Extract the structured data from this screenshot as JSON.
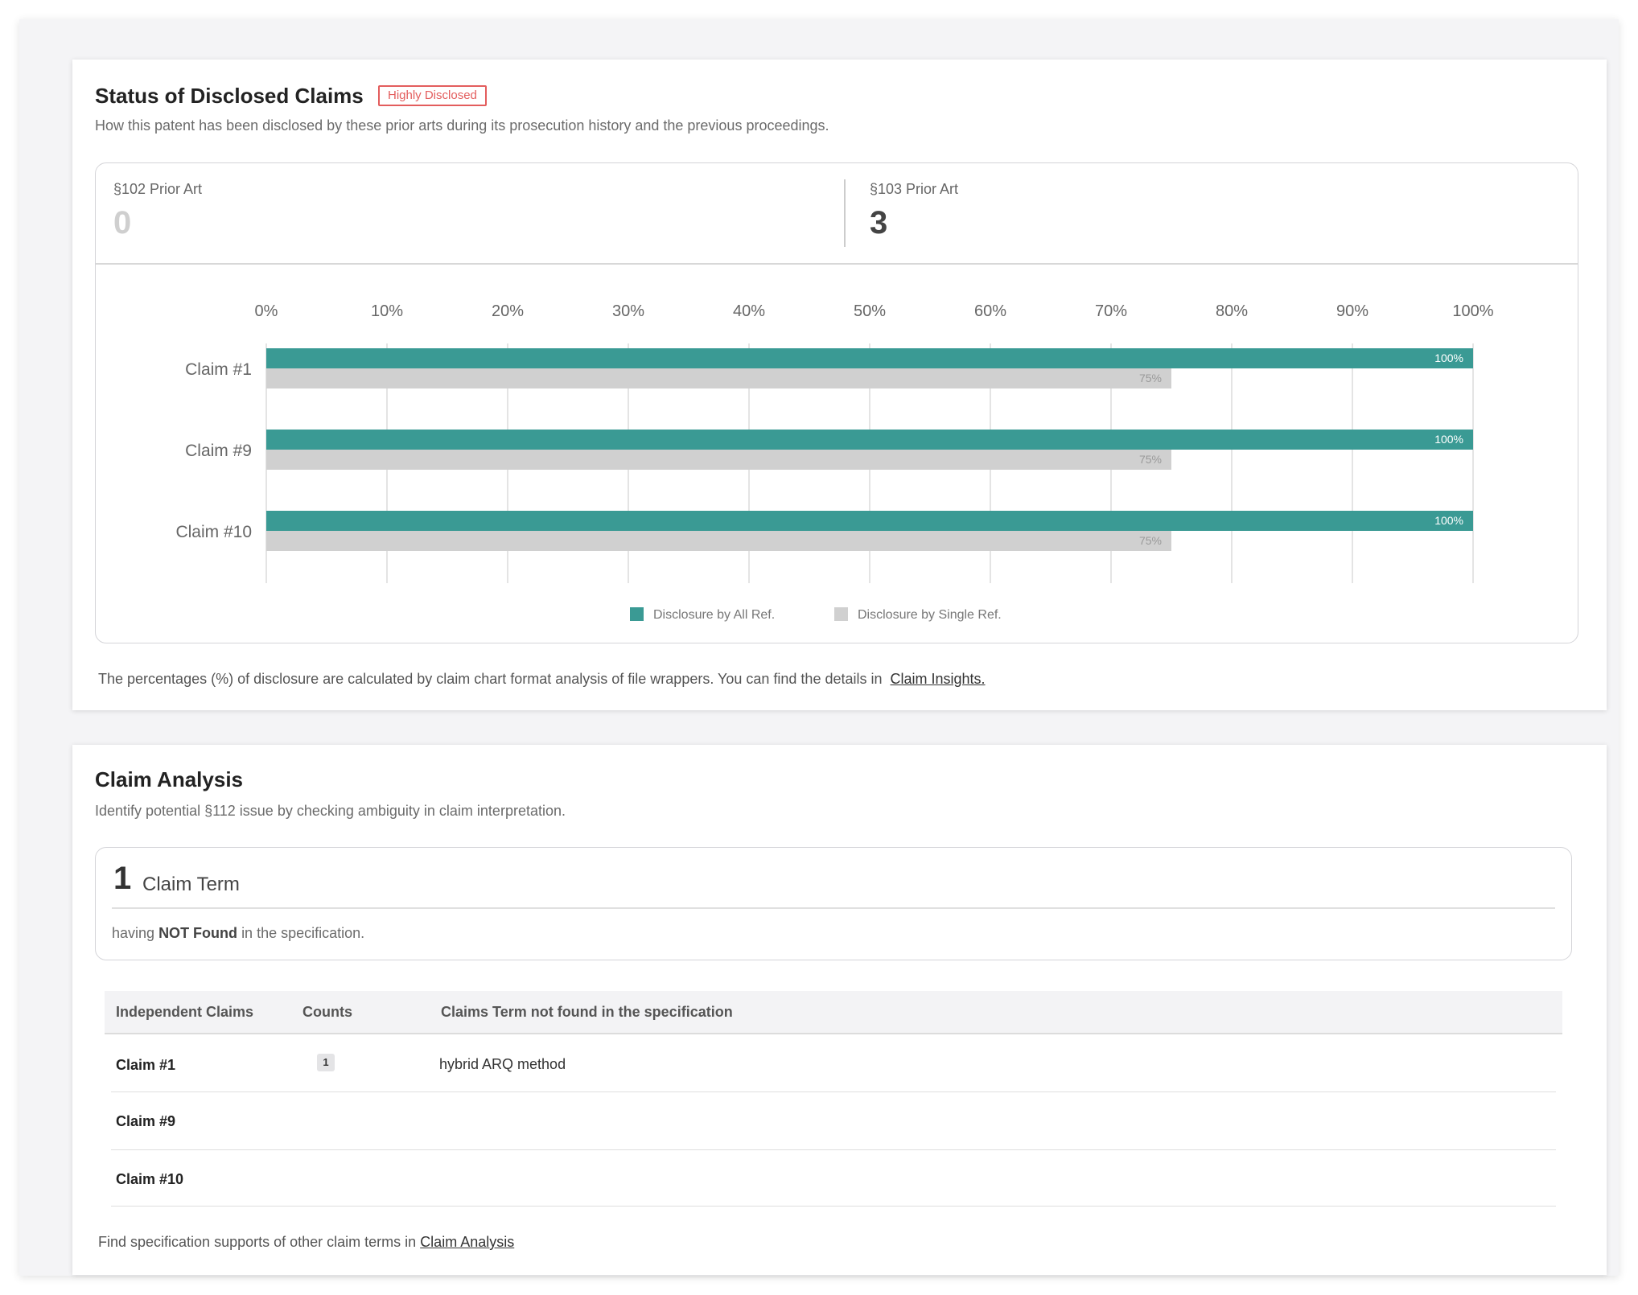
{
  "disclosed": {
    "title": "Status of Disclosed Claims",
    "badge": "Highly Disclosed",
    "subtitle": "How this patent has been disclosed by these prior arts during its prosecution history and the previous proceedings.",
    "stats": [
      {
        "label": "§102 Prior Art",
        "value": "0"
      },
      {
        "label": "§103 Prior Art",
        "value": "3"
      }
    ],
    "footnote": "The percentages (%) of disclosure are calculated by claim chart format analysis of file wrappers.  You can find the details in",
    "footnote_link": "Claim Insights."
  },
  "chart_data": {
    "type": "bar",
    "orientation": "horizontal",
    "categories": [
      "Claim #1",
      "Claim #9",
      "Claim #10"
    ],
    "series": [
      {
        "name": "Disclosure by All Ref.",
        "values": [
          100,
          100,
          100
        ],
        "color": "#3a9a94"
      },
      {
        "name": "Disclosure by Single Ref.",
        "values": [
          75,
          75,
          75
        ],
        "color": "#d0d0d0"
      }
    ],
    "xticks": [
      "0%",
      "10%",
      "20%",
      "30%",
      "40%",
      "50%",
      "60%",
      "70%",
      "80%",
      "90%",
      "100%"
    ],
    "xlim": [
      0,
      100
    ],
    "data_labels": [
      "100%",
      "75%"
    ],
    "grid": true,
    "legend": "bottom-center"
  },
  "analysis": {
    "title": "Claim Analysis",
    "subtitle": "Identify potential §112 issue by checking ambiguity in claim interpretation.",
    "term_count": "1",
    "term_label": "Claim Term",
    "term_desc_prefix": "having",
    "term_desc_bold": "NOT Found",
    "term_desc_suffix": "in the specification.",
    "table": {
      "headers": [
        "Independent Claims",
        "Counts",
        "Claims Term not found in the specification"
      ],
      "rows": [
        {
          "claim": "Claim #1",
          "count": "1",
          "term": "hybrid ARQ method"
        },
        {
          "claim": "Claim #9",
          "count": "",
          "term": ""
        },
        {
          "claim": "Claim #10",
          "count": "",
          "term": ""
        }
      ]
    },
    "footnote": "Find specification supports of other claim terms in",
    "footnote_link": "Claim Analysis"
  }
}
